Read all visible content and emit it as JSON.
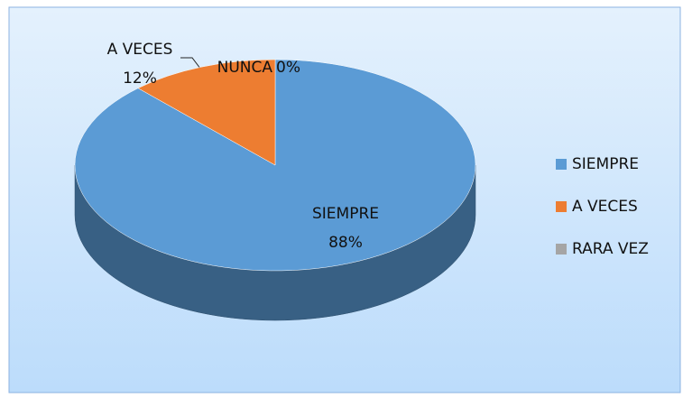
{
  "chart_data": {
    "type": "pie3d",
    "categories": [
      "SIEMPRE",
      "A VECES",
      "RARA VEZ",
      "NUNCA"
    ],
    "values": [
      88,
      12,
      0,
      0
    ],
    "value_labels": [
      "88%",
      "12%",
      null,
      "0%"
    ],
    "colors": [
      "#5b9bd5",
      "#ed7d31",
      "#a5a5a5",
      "#ffc000"
    ],
    "in_legend": [
      true,
      true,
      true,
      false
    ],
    "legend": "right"
  }
}
